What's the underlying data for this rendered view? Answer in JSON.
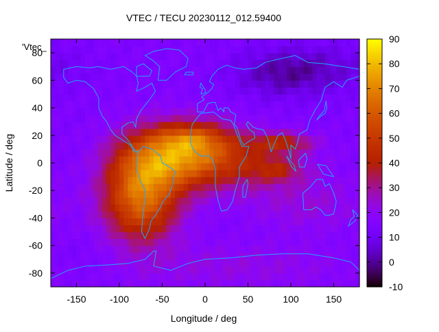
{
  "chart_data": {
    "type": "heatmap",
    "title": "VTEC / TECU 20230112_012.59400",
    "xlabel": "Longitude / deg",
    "ylabel": "Latitude / deg",
    "series_label": "'Vtec_",
    "xlim": [
      -180,
      180
    ],
    "ylim": [
      -90,
      90
    ],
    "x_ticks": [
      -150,
      -100,
      -50,
      0,
      50,
      100,
      150
    ],
    "y_ticks": [
      -80,
      -60,
      -40,
      -20,
      0,
      20,
      40,
      60,
      80
    ],
    "colorbar": {
      "min": -10,
      "max": 90,
      "ticks": [
        -10,
        0,
        10,
        20,
        30,
        40,
        50,
        60,
        70,
        80,
        90
      ],
      "palette": "gnuplot-pm3d"
    },
    "grid_step_deg": 5,
    "background_vtec": 15,
    "anomalies": [
      {
        "lon": -75,
        "lat": -25,
        "sx": 30,
        "sy": 22,
        "amp": 48
      },
      {
        "lon": -40,
        "lat": 5,
        "sx": 40,
        "sy": 16,
        "amp": 46
      },
      {
        "lon": -20,
        "lat": 18,
        "sx": 25,
        "sy": 6,
        "amp": 14
      },
      {
        "lon": 5,
        "lat": 15,
        "sx": 30,
        "sy": 12,
        "amp": 14
      },
      {
        "lon": 40,
        "lat": 0,
        "sx": 50,
        "sy": 14,
        "amp": 20
      },
      {
        "lon": 90,
        "lat": 15,
        "sx": 25,
        "sy": 5,
        "amp": 22
      },
      {
        "lon": 85,
        "lat": -5,
        "sx": 20,
        "sy": 6,
        "amp": 14
      },
      {
        "lon": 120,
        "lat": -30,
        "sx": 50,
        "sy": 14,
        "amp": 8
      },
      {
        "lon": 30,
        "lat": -75,
        "sx": 120,
        "sy": 12,
        "amp": 7
      },
      {
        "lon": 90,
        "lat": 65,
        "sx": 40,
        "sy": 12,
        "amp": -12
      },
      {
        "lon": 150,
        "lat": 70,
        "sx": 50,
        "sy": 12,
        "amp": -6
      },
      {
        "lon": -130,
        "lat": -70,
        "sx": 50,
        "sy": 12,
        "amp": -3
      }
    ],
    "coastlines": [
      {
        "name": "north-america",
        "points": [
          [
            -165,
            68
          ],
          [
            -150,
            70
          ],
          [
            -135,
            69
          ],
          [
            -125,
            70
          ],
          [
            -110,
            68
          ],
          [
            -95,
            70
          ],
          [
            -85,
            66
          ],
          [
            -80,
            63
          ],
          [
            -78,
            58
          ],
          [
            -80,
            52
          ],
          [
            -70,
            55
          ],
          [
            -62,
            58
          ],
          [
            -58,
            52
          ],
          [
            -66,
            45
          ],
          [
            -70,
            42
          ],
          [
            -75,
            38
          ],
          [
            -80,
            32
          ],
          [
            -81,
            26
          ],
          [
            -84,
            30
          ],
          [
            -90,
            29
          ],
          [
            -97,
            26
          ],
          [
            -97,
            21
          ],
          [
            -92,
            18
          ],
          [
            -88,
            15
          ],
          [
            -83,
            10
          ],
          [
            -79,
            8
          ],
          [
            -83,
            8
          ],
          [
            -87,
            13
          ],
          [
            -95,
            16
          ],
          [
            -105,
            20
          ],
          [
            -110,
            24
          ],
          [
            -115,
            30
          ],
          [
            -120,
            34
          ],
          [
            -124,
            40
          ],
          [
            -124,
            47
          ],
          [
            -130,
            54
          ],
          [
            -140,
            59
          ],
          [
            -150,
            60
          ],
          [
            -160,
            58
          ],
          [
            -165,
            62
          ],
          [
            -165,
            68
          ]
        ]
      },
      {
        "name": "south-america",
        "points": [
          [
            -78,
            8
          ],
          [
            -72,
            12
          ],
          [
            -62,
            10
          ],
          [
            -52,
            5
          ],
          [
            -50,
            0
          ],
          [
            -44,
            -2
          ],
          [
            -35,
            -6
          ],
          [
            -37,
            -12
          ],
          [
            -39,
            -18
          ],
          [
            -42,
            -23
          ],
          [
            -48,
            -27
          ],
          [
            -53,
            -33
          ],
          [
            -58,
            -38
          ],
          [
            -63,
            -42
          ],
          [
            -65,
            -48
          ],
          [
            -68,
            -52
          ],
          [
            -70,
            -55
          ],
          [
            -74,
            -50
          ],
          [
            -73,
            -40
          ],
          [
            -71,
            -30
          ],
          [
            -70,
            -20
          ],
          [
            -76,
            -12
          ],
          [
            -80,
            -5
          ],
          [
            -80,
            0
          ],
          [
            -78,
            8
          ]
        ]
      },
      {
        "name": "greenland",
        "points": [
          [
            -55,
            60
          ],
          [
            -45,
            60
          ],
          [
            -35,
            66
          ],
          [
            -22,
            70
          ],
          [
            -20,
            76
          ],
          [
            -30,
            82
          ],
          [
            -45,
            83
          ],
          [
            -60,
            81
          ],
          [
            -70,
            78
          ],
          [
            -60,
            74
          ],
          [
            -53,
            70
          ],
          [
            -55,
            60
          ]
        ]
      },
      {
        "name": "africa",
        "points": [
          [
            -17,
            21
          ],
          [
            -15,
            28
          ],
          [
            -9,
            33
          ],
          [
            -5,
            36
          ],
          [
            10,
            37
          ],
          [
            20,
            32
          ],
          [
            30,
            31
          ],
          [
            33,
            28
          ],
          [
            37,
            21
          ],
          [
            43,
            12
          ],
          [
            51,
            12
          ],
          [
            48,
            5
          ],
          [
            40,
            -3
          ],
          [
            40,
            -10
          ],
          [
            35,
            -20
          ],
          [
            32,
            -28
          ],
          [
            26,
            -34
          ],
          [
            19,
            -35
          ],
          [
            15,
            -27
          ],
          [
            12,
            -17
          ],
          [
            12,
            -5
          ],
          [
            9,
            2
          ],
          [
            5,
            5
          ],
          [
            -5,
            5
          ],
          [
            -10,
            7
          ],
          [
            -15,
            11
          ],
          [
            -17,
            15
          ],
          [
            -17,
            21
          ]
        ]
      },
      {
        "name": "eurasia",
        "points": [
          [
            -9,
            37
          ],
          [
            -9,
            43
          ],
          [
            -1,
            46
          ],
          [
            -4,
            48
          ],
          [
            3,
            51
          ],
          [
            8,
            54
          ],
          [
            10,
            57
          ],
          [
            5,
            59
          ],
          [
            8,
            63
          ],
          [
            15,
            68
          ],
          [
            25,
            71
          ],
          [
            35,
            69
          ],
          [
            45,
            68
          ],
          [
            60,
            69
          ],
          [
            70,
            73
          ],
          [
            90,
            76
          ],
          [
            105,
            78
          ],
          [
            120,
            73
          ],
          [
            140,
            72
          ],
          [
            160,
            70
          ],
          [
            180,
            68
          ],
          [
            180,
            63
          ],
          [
            165,
            60
          ],
          [
            160,
            55
          ],
          [
            150,
            59
          ],
          [
            140,
            55
          ],
          [
            135,
            45
          ],
          [
            128,
            38
          ],
          [
            122,
            31
          ],
          [
            119,
            24
          ],
          [
            110,
            21
          ],
          [
            108,
            15
          ],
          [
            105,
            10
          ],
          [
            100,
            13
          ],
          [
            100,
            3
          ],
          [
            98,
            8
          ],
          [
            94,
            16
          ],
          [
            90,
            22
          ],
          [
            85,
            20
          ],
          [
            80,
            13
          ],
          [
            77,
            8
          ],
          [
            73,
            18
          ],
          [
            68,
            24
          ],
          [
            60,
            25
          ],
          [
            56,
            26
          ],
          [
            50,
            30
          ],
          [
            48,
            28
          ],
          [
            52,
            24
          ],
          [
            57,
            22
          ],
          [
            58,
            18
          ],
          [
            52,
            16
          ],
          [
            45,
            13
          ],
          [
            42,
            16
          ],
          [
            37,
            26
          ],
          [
            34,
            28
          ],
          [
            36,
            35
          ],
          [
            30,
            37
          ],
          [
            27,
            40
          ],
          [
            22,
            40
          ],
          [
            22,
            37
          ],
          [
            18,
            40
          ],
          [
            15,
            38
          ],
          [
            12,
            44
          ],
          [
            8,
            44
          ],
          [
            3,
            43
          ],
          [
            -2,
            37
          ],
          [
            -9,
            37
          ]
        ]
      },
      {
        "name": "australia",
        "points": [
          [
            114,
            -22
          ],
          [
            122,
            -18
          ],
          [
            130,
            -12
          ],
          [
            137,
            -12
          ],
          [
            140,
            -17
          ],
          [
            145,
            -15
          ],
          [
            150,
            -22
          ],
          [
            153,
            -28
          ],
          [
            150,
            -37
          ],
          [
            145,
            -38
          ],
          [
            140,
            -38
          ],
          [
            135,
            -34
          ],
          [
            129,
            -32
          ],
          [
            124,
            -34
          ],
          [
            115,
            -34
          ],
          [
            114,
            -22
          ]
        ]
      },
      {
        "name": "antarctica",
        "points": [
          [
            -180,
            -84
          ],
          [
            -160,
            -78
          ],
          [
            -140,
            -75
          ],
          [
            -110,
            -74
          ],
          [
            -90,
            -73
          ],
          [
            -70,
            -70
          ],
          [
            -60,
            -64
          ],
          [
            -57,
            -64
          ],
          [
            -60,
            -75
          ],
          [
            -40,
            -78
          ],
          [
            -20,
            -73
          ],
          [
            0,
            -70
          ],
          [
            30,
            -69
          ],
          [
            60,
            -67
          ],
          [
            90,
            -66
          ],
          [
            120,
            -66
          ],
          [
            150,
            -69
          ],
          [
            170,
            -72
          ],
          [
            180,
            -78
          ]
        ]
      },
      {
        "name": "uk",
        "points": [
          [
            -5,
            50
          ],
          [
            1,
            51
          ],
          [
            0,
            53
          ],
          [
            -3,
            56
          ],
          [
            -5,
            58
          ],
          [
            -6,
            55
          ],
          [
            -3,
            54
          ],
          [
            -5,
            50
          ]
        ]
      },
      {
        "name": "madagascar",
        "points": [
          [
            44,
            -25
          ],
          [
            47,
            -25
          ],
          [
            50,
            -15
          ],
          [
            49,
            -12
          ],
          [
            44,
            -17
          ],
          [
            44,
            -25
          ]
        ]
      },
      {
        "name": "japan",
        "points": [
          [
            130,
            31
          ],
          [
            135,
            34
          ],
          [
            140,
            36
          ],
          [
            142,
            40
          ],
          [
            141,
            45
          ],
          [
            139,
            38
          ],
          [
            133,
            34
          ],
          [
            130,
            31
          ]
        ]
      },
      {
        "name": "borneo",
        "points": [
          [
            109,
            2
          ],
          [
            117,
            7
          ],
          [
            119,
            3
          ],
          [
            116,
            -3
          ],
          [
            110,
            -3
          ],
          [
            109,
            2
          ]
        ]
      },
      {
        "name": "sumatra",
        "points": [
          [
            95,
            5
          ],
          [
            104,
            -2
          ],
          [
            106,
            -6
          ],
          [
            101,
            -3
          ],
          [
            95,
            5
          ]
        ]
      },
      {
        "name": "new-guinea",
        "points": [
          [
            131,
            -1
          ],
          [
            141,
            -2
          ],
          [
            150,
            -10
          ],
          [
            143,
            -9
          ],
          [
            138,
            -8
          ],
          [
            131,
            -1
          ]
        ]
      },
      {
        "name": "new-zealand",
        "points": [
          [
            172,
            -34
          ],
          [
            178,
            -38
          ],
          [
            175,
            -42
          ],
          [
            171,
            -44
          ],
          [
            167,
            -46
          ],
          [
            170,
            -41
          ],
          [
            174,
            -39
          ],
          [
            172,
            -34
          ]
        ]
      },
      {
        "name": "iceland",
        "points": [
          [
            -24,
            64
          ],
          [
            -14,
            64
          ],
          [
            -14,
            66
          ],
          [
            -22,
            66
          ],
          [
            -24,
            64
          ]
        ]
      },
      {
        "name": "baffin",
        "points": [
          [
            -80,
            63
          ],
          [
            -65,
            63
          ],
          [
            -62,
            67
          ],
          [
            -72,
            72
          ],
          [
            -80,
            70
          ],
          [
            -80,
            63
          ]
        ]
      }
    ]
  }
}
